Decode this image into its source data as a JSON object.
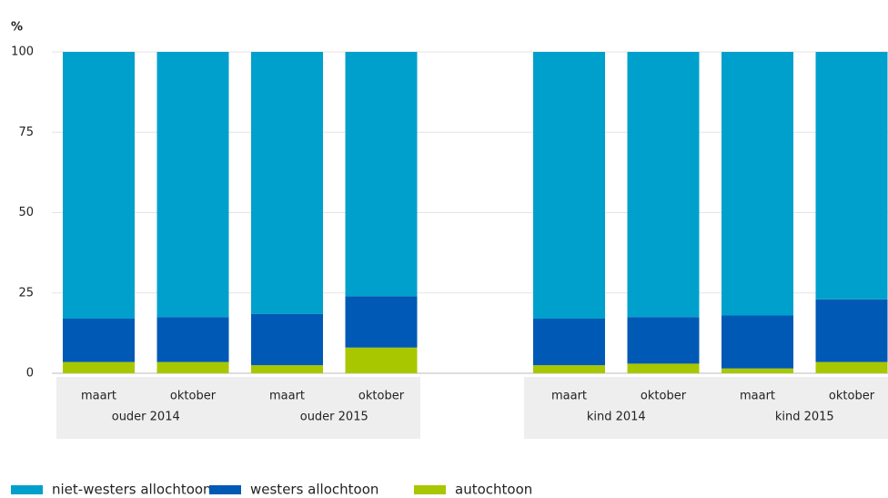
{
  "chart_data": {
    "type": "stacked_bar",
    "y_label": "%",
    "categories": [
      "maart",
      "oktober",
      "maart",
      "oktober",
      "maart",
      "oktober",
      "maart",
      "oktober"
    ],
    "groups": [
      "ouder 2014",
      "ouder 2015",
      "kind 2014",
      "kind 2015"
    ],
    "series": [
      {
        "name": "niet-westers allochtoon",
        "color": "#00a0cc",
        "values": [
          83,
          82.5,
          81.5,
          76,
          83,
          82.5,
          82,
          77
        ]
      },
      {
        "name": "westers allochtoon",
        "color": "#0059b5",
        "values": [
          13.5,
          14,
          16,
          16,
          14.5,
          14.5,
          16.5,
          19.5
        ]
      },
      {
        "name": "autochtoon",
        "color": "#a9c700",
        "values": [
          3.5,
          3.5,
          2.5,
          8,
          2.5,
          3,
          1.5,
          3.5
        ]
      }
    ],
    "ylim": [
      0,
      100
    ],
    "yticks": [
      0,
      25,
      50,
      75,
      100
    ],
    "grid": true
  }
}
